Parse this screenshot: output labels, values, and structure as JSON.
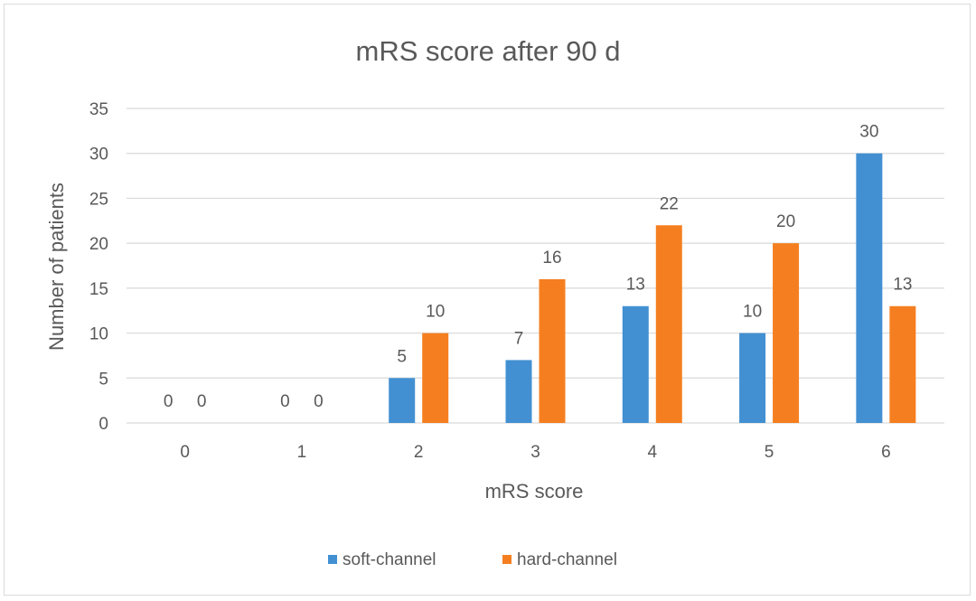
{
  "chart_data": {
    "type": "bar",
    "title": "mRS score after 90 d",
    "xlabel": "mRS score",
    "ylabel": "Number of patients",
    "categories": [
      "0",
      "1",
      "2",
      "3",
      "4",
      "5",
      "6"
    ],
    "series": [
      {
        "name": "soft-channel",
        "color": "#4290d2",
        "values": [
          0,
          0,
          5,
          7,
          13,
          10,
          30
        ]
      },
      {
        "name": "hard-channel",
        "color": "#f57f20",
        "values": [
          0,
          0,
          10,
          16,
          22,
          20,
          13
        ]
      }
    ],
    "ylim": [
      0,
      35
    ],
    "yticks": [
      0,
      5,
      10,
      15,
      20,
      25,
      30,
      35
    ],
    "grid": true,
    "legend_position": "bottom",
    "data_labels": true
  }
}
